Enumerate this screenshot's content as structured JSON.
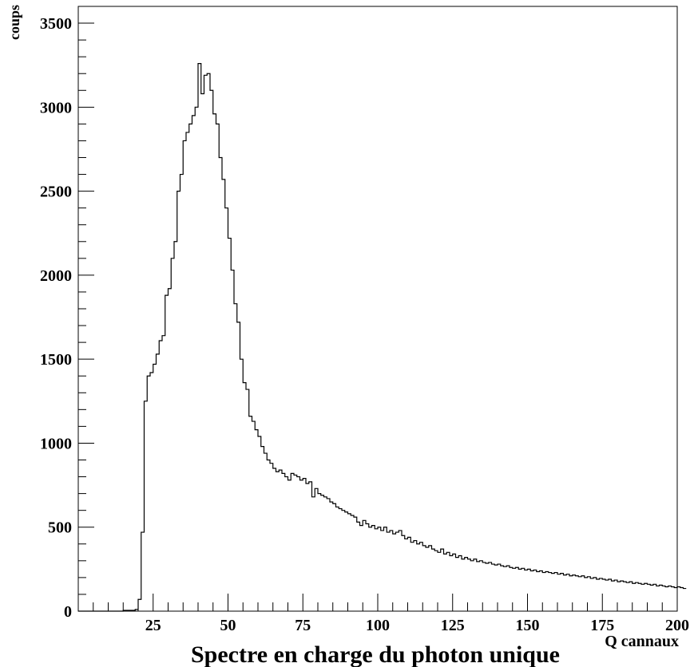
{
  "chart_data": {
    "type": "histogram",
    "title": "Spectre en charge du photon unique",
    "xlabel": "Q cannaux",
    "ylabel": "coups",
    "xlim": [
      0,
      200
    ],
    "ylim": [
      0,
      3600
    ],
    "xticks": [
      25,
      50,
      75,
      100,
      125,
      150,
      175,
      200
    ],
    "yticks": [
      0,
      500,
      1000,
      1500,
      2000,
      2500,
      3000,
      3500
    ],
    "bin_width": 1,
    "x_start": 0,
    "values": [
      0,
      0,
      0,
      0,
      0,
      0,
      0,
      0,
      0,
      0,
      0,
      0,
      0,
      0,
      0,
      5,
      5,
      5,
      5,
      10,
      70,
      470,
      1250,
      1400,
      1420,
      1470,
      1530,
      1610,
      1640,
      1880,
      1920,
      2100,
      2200,
      2500,
      2600,
      2800,
      2850,
      2900,
      2950,
      3000,
      3260,
      3080,
      3190,
      3200,
      3100,
      2960,
      2900,
      2700,
      2570,
      2400,
      2220,
      2030,
      1830,
      1720,
      1500,
      1360,
      1320,
      1160,
      1130,
      1080,
      1040,
      980,
      940,
      900,
      880,
      850,
      830,
      840,
      820,
      800,
      780,
      820,
      810,
      800,
      780,
      790,
      760,
      770,
      680,
      730,
      700,
      690,
      680,
      670,
      650,
      640,
      620,
      610,
      600,
      590,
      580,
      570,
      560,
      530,
      510,
      540,
      520,
      500,
      510,
      490,
      500,
      480,
      500,
      470,
      480,
      460,
      470,
      480,
      450,
      430,
      440,
      410,
      420,
      400,
      410,
      390,
      380,
      390,
      370,
      360,
      350,
      370,
      340,
      350,
      330,
      340,
      320,
      330,
      310,
      320,
      310,
      300,
      310,
      295,
      300,
      290,
      285,
      290,
      280,
      275,
      280,
      270,
      265,
      270,
      260,
      255,
      260,
      250,
      255,
      245,
      250,
      240,
      245,
      235,
      240,
      230,
      235,
      230,
      225,
      230,
      220,
      225,
      215,
      220,
      210,
      215,
      210,
      205,
      210,
      200,
      205,
      195,
      200,
      190,
      195,
      190,
      185,
      190,
      180,
      185,
      175,
      180,
      175,
      170,
      175,
      165,
      170,
      165,
      160,
      165,
      160,
      155,
      160,
      150,
      155,
      150,
      145,
      150,
      145,
      140,
      145,
      140,
      135
    ]
  }
}
